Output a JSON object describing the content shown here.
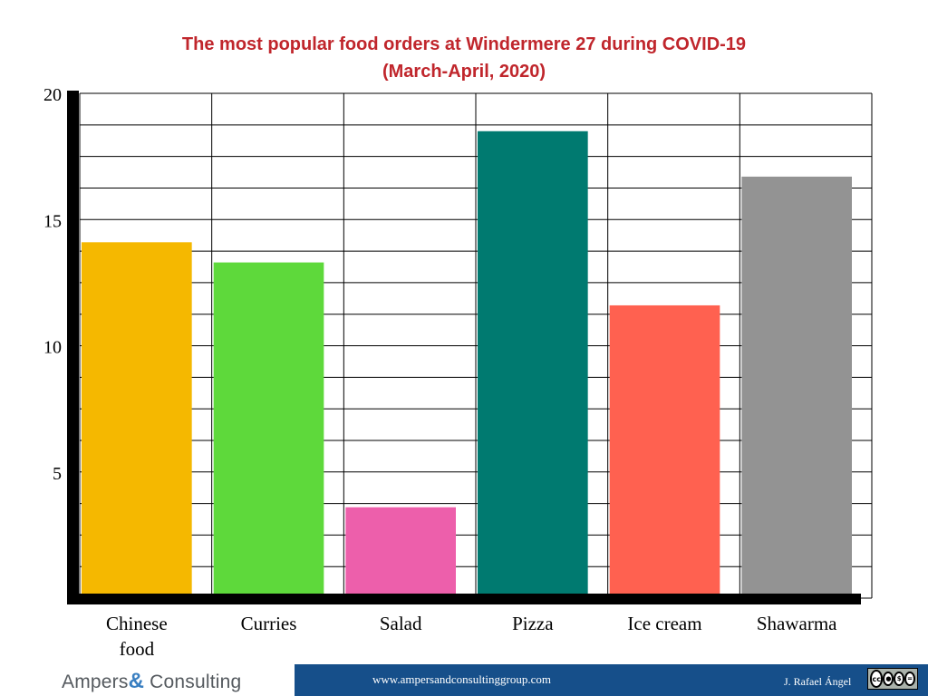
{
  "chart_data": {
    "type": "bar",
    "title_line1": "The most popular food orders at Windermere 27 during COVID-19",
    "title_line2": "(March-April, 2020)",
    "categories": [
      "Chinese food",
      "Curries",
      "Salad",
      "Pizza",
      "Ice cream",
      "Shawarma"
    ],
    "category_lines": [
      [
        "Chinese",
        "food"
      ],
      [
        "Curries"
      ],
      [
        "Salad"
      ],
      [
        "Pizza"
      ],
      [
        "Ice cream"
      ],
      [
        "Shawarma"
      ]
    ],
    "values": [
      14.1,
      13.3,
      3.6,
      18.5,
      11.6,
      16.7
    ],
    "colors": [
      "#f5b800",
      "#5ed93b",
      "#ed5fab",
      "#007a70",
      "#ff6150",
      "#939393"
    ],
    "ylim": [
      0,
      20
    ],
    "yticks": [
      5,
      10,
      15,
      20
    ],
    "ytick_labels": [
      "5",
      "10",
      "15",
      "20"
    ],
    "xlabel": "",
    "ylabel": "",
    "grid": true
  },
  "footer": {
    "url": "www.ampersandconsultinggroup.com",
    "author": "J. Rafael Ángel",
    "license_icon": "creative-commons-by-nc-nd-icon"
  },
  "logo": {
    "part1": "Ampers",
    "ampersand": "&",
    "part2": " Consulting"
  }
}
